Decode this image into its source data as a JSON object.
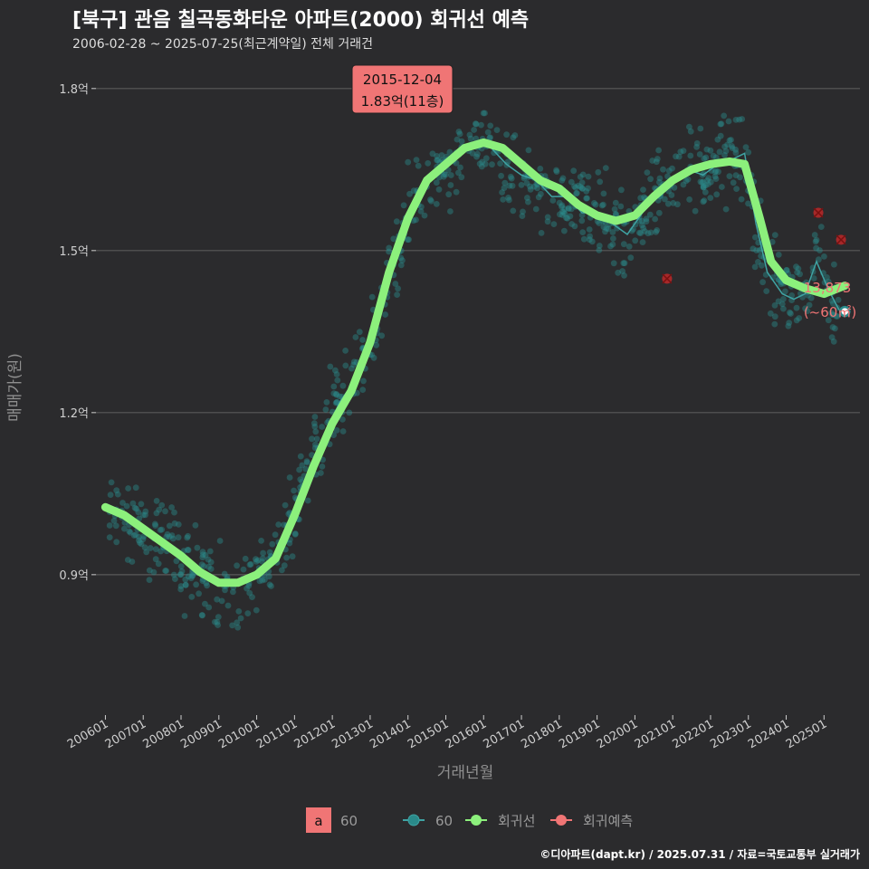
{
  "header": {
    "title": "[북구] 관음 칠곡동화타운 아파트(2000) 회귀선 예측",
    "subtitle": "2006-02-28 ~ 2025-07-25(최근계약일) 전체 거래건"
  },
  "footer": {
    "credit": "©디아파트(dapt.kr) / 2025.07.31 / 자료=국토교통부 실거래가"
  },
  "colors": {
    "background": "#2b2b2d",
    "grid": "#5a5a5a",
    "points": "#2a8a8a",
    "trend": "#3fa3a3",
    "regression": "#8cf07c",
    "prediction": "#c62828",
    "callout": "#f07575"
  },
  "chart_data": {
    "type": "scatter",
    "xlabel": "거래년월",
    "ylabel": "매매가(원)",
    "x_ticks": [
      "200601",
      "200701",
      "200801",
      "200901",
      "201001",
      "201101",
      "201201",
      "201301",
      "201401",
      "201501",
      "201601",
      "201701",
      "201801",
      "201901",
      "202001",
      "202101",
      "202201",
      "202301",
      "202401",
      "202501"
    ],
    "y_ticks": [
      0.9,
      1.2,
      1.5,
      1.8
    ],
    "y_tick_labels": [
      "0.9억",
      "1.2억",
      "1.5억",
      "1.8억"
    ],
    "ylim": [
      0.64,
      1.86
    ],
    "xlim": [
      2005.75,
      2025.95
    ],
    "grid": true,
    "max_annotation": {
      "date_label": "2015-12-04",
      "value_label": "1.83억(11층)",
      "x": 2015.92,
      "y": 1.83
    },
    "last_annotation": {
      "value_label": "13,873",
      "area_label": "(~60㎡)",
      "x": 2025.55,
      "y": 1.3873
    },
    "series": [
      {
        "name": "60",
        "kind": "monthly-trend",
        "points": [
          [
            2006.1,
            1.02
          ],
          [
            2006.4,
            1.01
          ],
          [
            2006.8,
            1.0
          ],
          [
            2007.1,
            0.98
          ],
          [
            2007.5,
            0.96
          ],
          [
            2007.9,
            0.94
          ],
          [
            2008.3,
            0.91
          ],
          [
            2008.7,
            0.9
          ],
          [
            2009.1,
            0.88
          ],
          [
            2009.5,
            0.88
          ],
          [
            2009.9,
            0.9
          ],
          [
            2010.3,
            0.92
          ],
          [
            2010.7,
            0.96
          ],
          [
            2011.0,
            1.02
          ],
          [
            2011.4,
            1.1
          ],
          [
            2011.8,
            1.16
          ],
          [
            2012.2,
            1.22
          ],
          [
            2012.6,
            1.26
          ],
          [
            2013.0,
            1.34
          ],
          [
            2013.4,
            1.44
          ],
          [
            2013.8,
            1.53
          ],
          [
            2014.2,
            1.6
          ],
          [
            2014.6,
            1.63
          ],
          [
            2015.0,
            1.66
          ],
          [
            2015.4,
            1.68
          ],
          [
            2015.8,
            1.7
          ],
          [
            2016.2,
            1.69
          ],
          [
            2016.6,
            1.66
          ],
          [
            2017.0,
            1.64
          ],
          [
            2017.4,
            1.63
          ],
          [
            2017.8,
            1.6
          ],
          [
            2018.2,
            1.6
          ],
          [
            2018.6,
            1.57
          ],
          [
            2019.0,
            1.57
          ],
          [
            2019.4,
            1.55
          ],
          [
            2019.8,
            1.53
          ],
          [
            2020.2,
            1.57
          ],
          [
            2020.6,
            1.61
          ],
          [
            2021.0,
            1.63
          ],
          [
            2021.4,
            1.65
          ],
          [
            2021.8,
            1.64
          ],
          [
            2022.2,
            1.66
          ],
          [
            2022.6,
            1.67
          ],
          [
            2022.9,
            1.68
          ],
          [
            2023.2,
            1.55
          ],
          [
            2023.5,
            1.46
          ],
          [
            2023.9,
            1.42
          ],
          [
            2024.2,
            1.41
          ],
          [
            2024.5,
            1.42
          ],
          [
            2024.8,
            1.48
          ],
          [
            2025.1,
            1.43
          ],
          [
            2025.4,
            1.39
          ]
        ]
      },
      {
        "name": "회귀선",
        "kind": "regression",
        "points": [
          [
            2006.0,
            1.025
          ],
          [
            2006.5,
            1.01
          ],
          [
            2007.0,
            0.985
          ],
          [
            2007.5,
            0.96
          ],
          [
            2008.0,
            0.935
          ],
          [
            2008.5,
            0.905
          ],
          [
            2009.0,
            0.885
          ],
          [
            2009.5,
            0.885
          ],
          [
            2010.0,
            0.9
          ],
          [
            2010.5,
            0.93
          ],
          [
            2011.0,
            1.01
          ],
          [
            2011.5,
            1.1
          ],
          [
            2012.0,
            1.18
          ],
          [
            2012.5,
            1.24
          ],
          [
            2013.0,
            1.33
          ],
          [
            2013.5,
            1.46
          ],
          [
            2014.0,
            1.56
          ],
          [
            2014.5,
            1.63
          ],
          [
            2015.0,
            1.66
          ],
          [
            2015.5,
            1.69
          ],
          [
            2016.0,
            1.7
          ],
          [
            2016.5,
            1.69
          ],
          [
            2017.0,
            1.66
          ],
          [
            2017.5,
            1.63
          ],
          [
            2018.0,
            1.615
          ],
          [
            2018.5,
            1.585
          ],
          [
            2019.0,
            1.565
          ],
          [
            2019.5,
            1.555
          ],
          [
            2020.0,
            1.565
          ],
          [
            2020.5,
            1.6
          ],
          [
            2021.0,
            1.63
          ],
          [
            2021.5,
            1.65
          ],
          [
            2022.0,
            1.66
          ],
          [
            2022.5,
            1.665
          ],
          [
            2022.9,
            1.66
          ],
          [
            2023.3,
            1.56
          ],
          [
            2023.6,
            1.48
          ],
          [
            2024.0,
            1.445
          ],
          [
            2024.5,
            1.43
          ],
          [
            2025.0,
            1.42
          ],
          [
            2025.55,
            1.435
          ]
        ]
      },
      {
        "name": "회귀예측",
        "kind": "prediction",
        "points": [
          [
            2020.85,
            1.448
          ],
          [
            2024.85,
            1.57
          ],
          [
            2025.45,
            1.52
          ]
        ]
      }
    ],
    "legend": [
      {
        "symbol": "a",
        "label": "60"
      },
      {
        "label": "60"
      },
      {
        "label": "회귀선"
      },
      {
        "label": "회귀예측"
      }
    ]
  }
}
